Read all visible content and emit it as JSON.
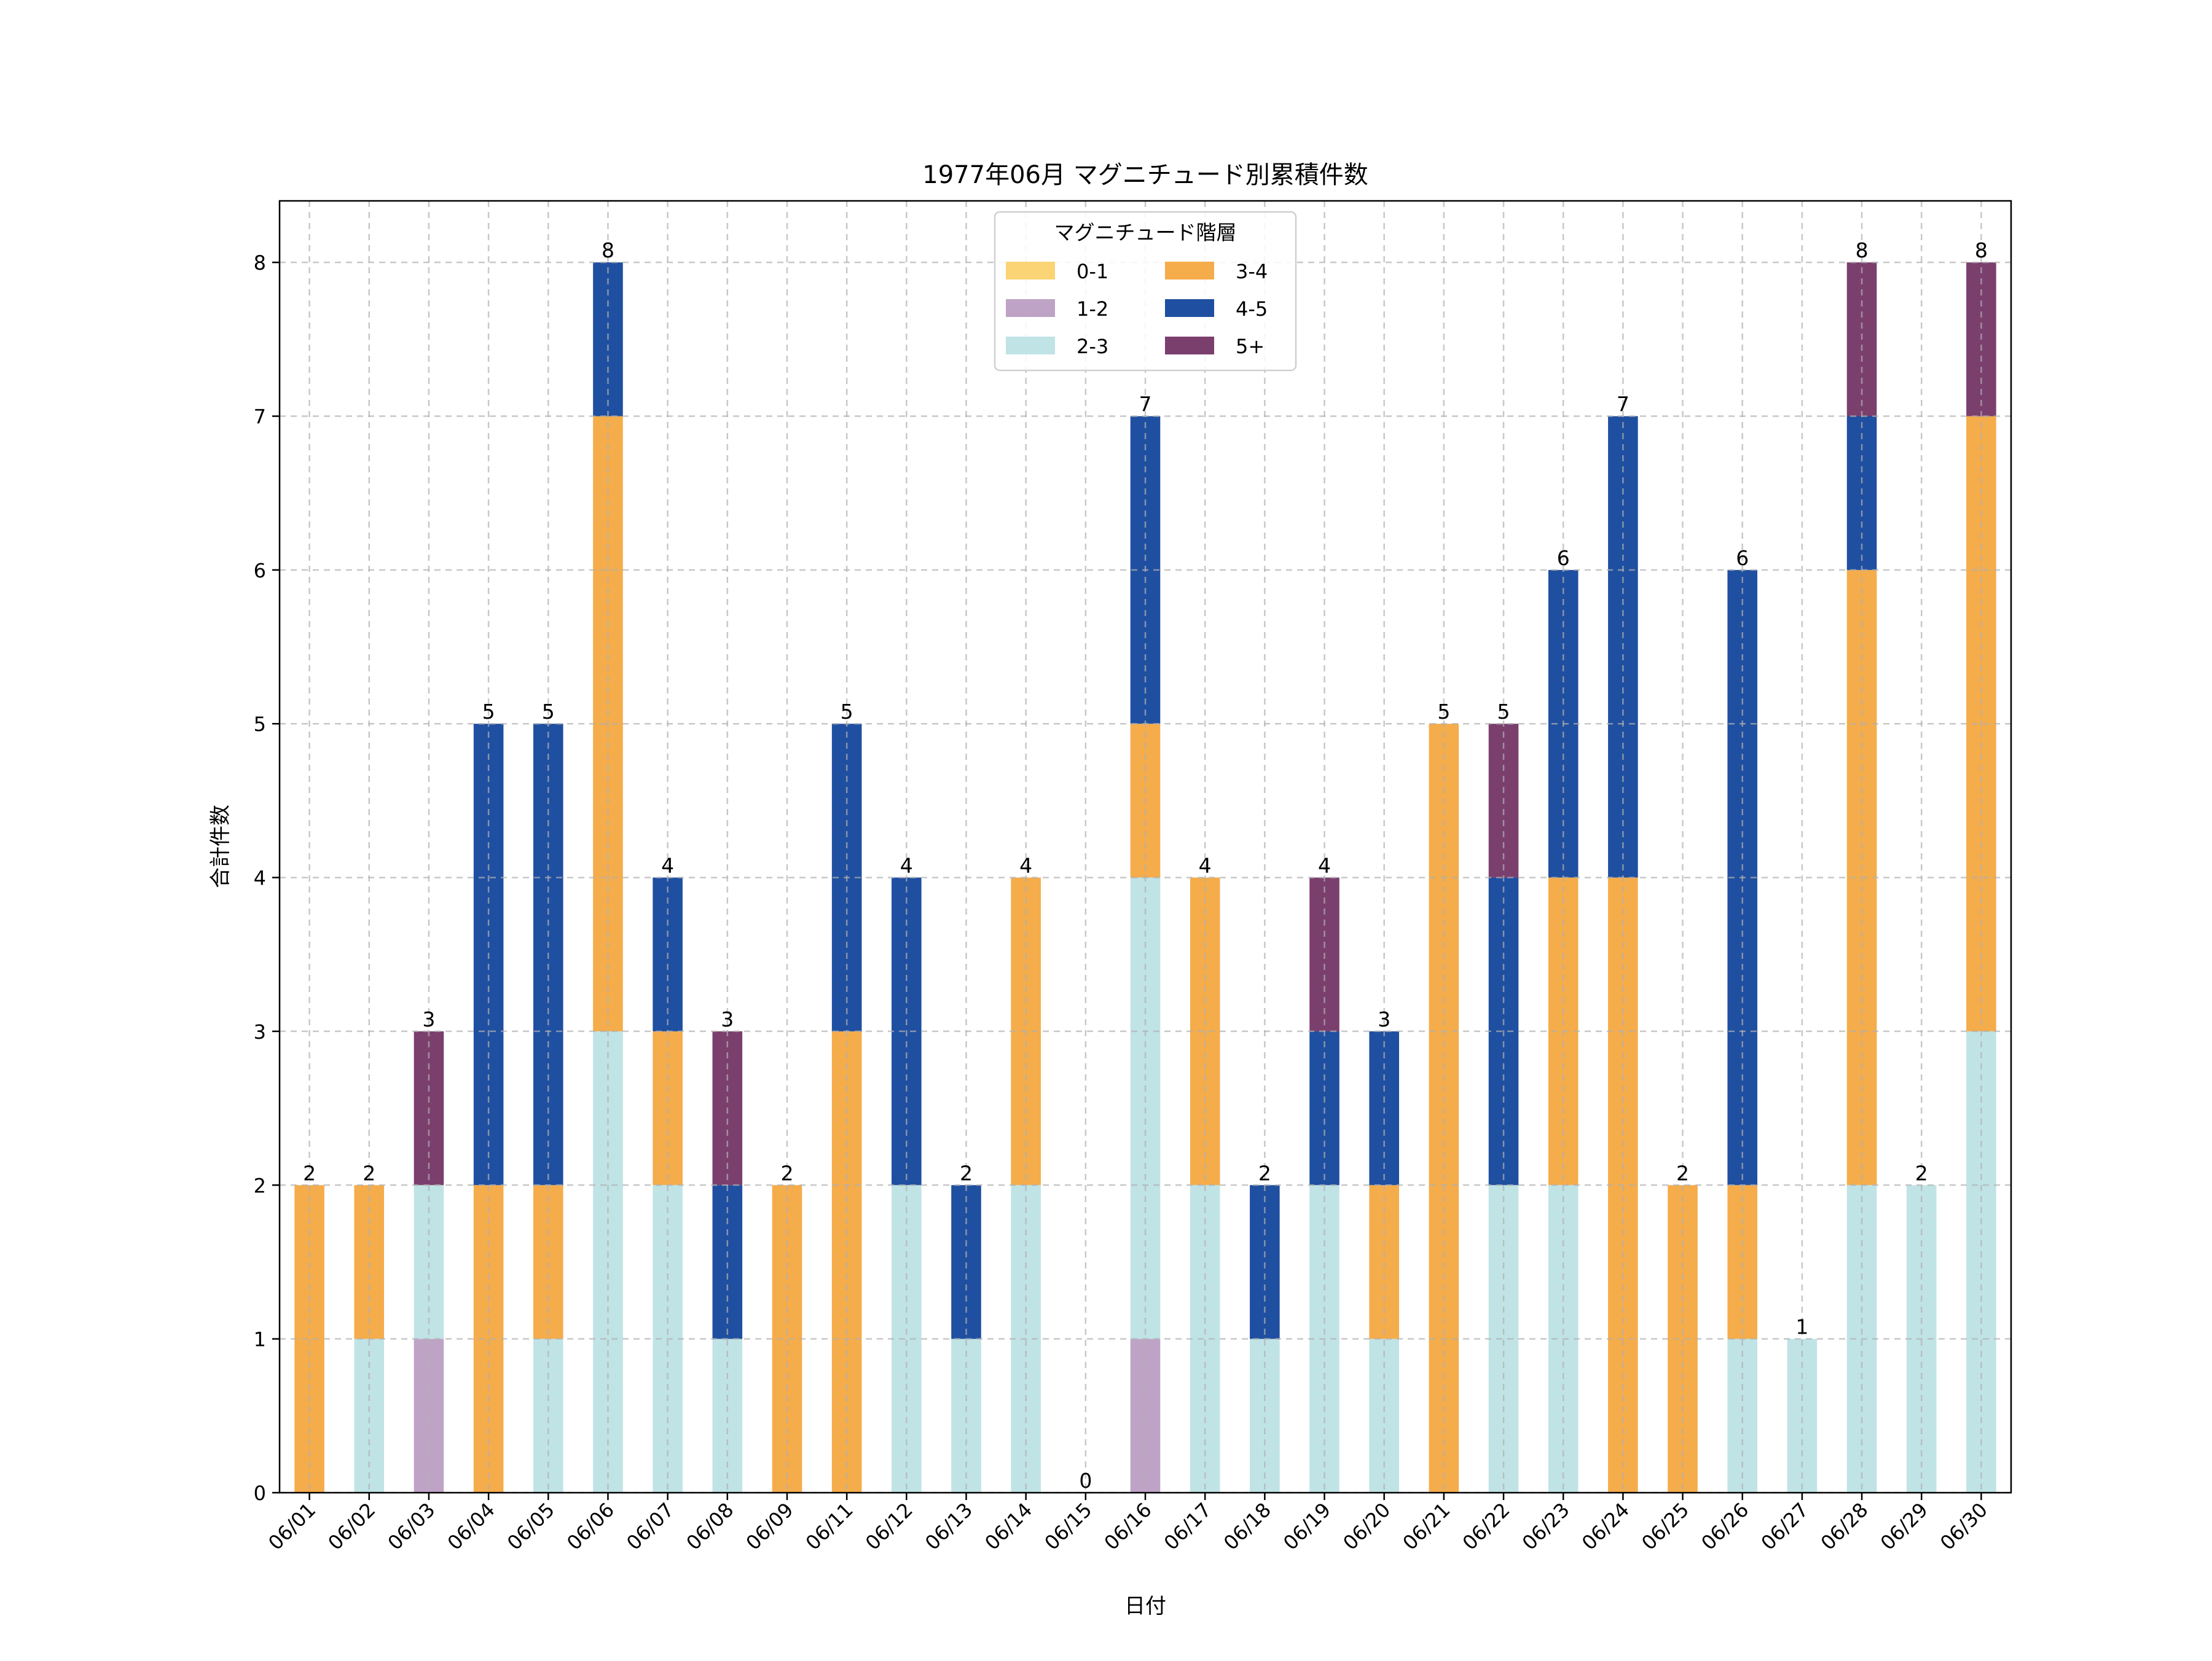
{
  "chart_data": {
    "type": "bar",
    "stacked": true,
    "title": "1977年06月 マグニチュード別累積件数",
    "xlabel": "日付",
    "ylabel": "合計件数",
    "ylim": [
      0,
      8.4
    ],
    "yticks": [
      0,
      1,
      2,
      3,
      4,
      5,
      6,
      7,
      8
    ],
    "grid": true,
    "legend": {
      "title": "マグニチュード階層",
      "placement": "top-center",
      "columns": 2
    },
    "categories": [
      "06/01",
      "06/02",
      "06/03",
      "06/04",
      "06/05",
      "06/06",
      "06/07",
      "06/08",
      "06/09",
      "06/11",
      "06/12",
      "06/13",
      "06/14",
      "06/15",
      "06/16",
      "06/17",
      "06/18",
      "06/19",
      "06/20",
      "06/21",
      "06/22",
      "06/23",
      "06/24",
      "06/25",
      "06/26",
      "06/27",
      "06/28",
      "06/29",
      "06/30"
    ],
    "series": [
      {
        "name": "0-1",
        "color": "#fbd476",
        "values": [
          0,
          0,
          0,
          0,
          0,
          0,
          0,
          0,
          0,
          0,
          0,
          0,
          0,
          0,
          0,
          0,
          0,
          0,
          0,
          0,
          0,
          0,
          0,
          0,
          0,
          0,
          0,
          0,
          0
        ]
      },
      {
        "name": "1-2",
        "color": "#bfa3c6",
        "values": [
          0,
          0,
          1,
          0,
          0,
          0,
          0,
          0,
          0,
          0,
          0,
          0,
          0,
          0,
          1,
          0,
          0,
          0,
          0,
          0,
          0,
          0,
          0,
          0,
          0,
          0,
          0,
          0,
          0
        ]
      },
      {
        "name": "2-3",
        "color": "#c0e3e6",
        "values": [
          0,
          1,
          1,
          0,
          1,
          3,
          2,
          1,
          0,
          0,
          2,
          1,
          2,
          0,
          3,
          2,
          1,
          2,
          1,
          0,
          2,
          2,
          0,
          0,
          1,
          1,
          2,
          2,
          3
        ]
      },
      {
        "name": "3-4",
        "color": "#f5ac4a",
        "values": [
          2,
          1,
          0,
          2,
          1,
          4,
          1,
          0,
          2,
          3,
          0,
          0,
          2,
          0,
          1,
          2,
          0,
          0,
          1,
          5,
          0,
          2,
          4,
          2,
          1,
          0,
          4,
          0,
          4
        ]
      },
      {
        "name": "4-5",
        "color": "#1f4fa0",
        "values": [
          0,
          0,
          0,
          3,
          3,
          1,
          1,
          1,
          0,
          2,
          2,
          1,
          0,
          0,
          2,
          0,
          1,
          1,
          1,
          0,
          2,
          2,
          3,
          0,
          4,
          0,
          1,
          0,
          0
        ]
      },
      {
        "name": "5+",
        "color": "#7b3f6e",
        "values": [
          0,
          0,
          1,
          0,
          0,
          0,
          0,
          1,
          0,
          0,
          0,
          0,
          0,
          0,
          0,
          0,
          0,
          1,
          0,
          0,
          1,
          0,
          0,
          0,
          0,
          0,
          1,
          0,
          1
        ]
      }
    ],
    "totals": [
      2,
      2,
      3,
      5,
      5,
      8,
      4,
      3,
      2,
      5,
      4,
      2,
      4,
      0,
      7,
      4,
      2,
      4,
      3,
      5,
      5,
      6,
      7,
      2,
      6,
      1,
      8,
      2,
      8
    ]
  }
}
